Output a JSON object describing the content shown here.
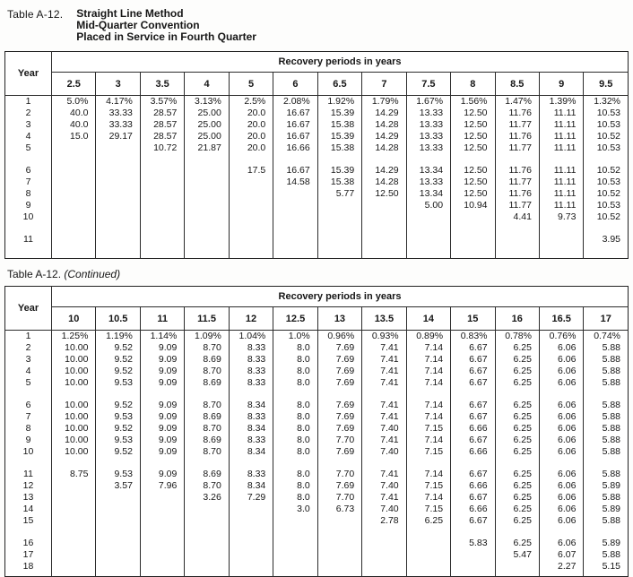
{
  "doc": {
    "table_label": "Table A-12.",
    "title_lines": [
      "Straight Line Method",
      "Mid-Quarter Convention",
      "Placed in Service in Fourth Quarter"
    ],
    "continued_table_label": "Table A-12.",
    "continued_note": "(Continued)"
  },
  "tables": [
    {
      "id": "table-a12-first",
      "year_header": "Year",
      "group_header": "Recovery periods in years",
      "columns": [
        "2.5",
        "3",
        "3.5",
        "4",
        "5",
        "6",
        "6.5",
        "7",
        "7.5",
        "8",
        "8.5",
        "9",
        "9.5"
      ],
      "row_groups": [
        [
          {
            "year": "1",
            "values": [
              "5.0%",
              "4.17%",
              "3.57%",
              "3.13%",
              "2.5%",
              "2.08%",
              "1.92%",
              "1.79%",
              "1.67%",
              "1.56%",
              "1.47%",
              "1.39%",
              "1.32%"
            ]
          },
          {
            "year": "2",
            "values": [
              "40.0",
              "33.33",
              "28.57",
              "25.00",
              "20.0",
              "16.67",
              "15.39",
              "14.29",
              "13.33",
              "12.50",
              "11.76",
              "11.11",
              "10.53"
            ]
          },
          {
            "year": "3",
            "values": [
              "40.0",
              "33.33",
              "28.57",
              "25.00",
              "20.0",
              "16.67",
              "15.38",
              "14.28",
              "13.33",
              "12.50",
              "11.77",
              "11.11",
              "10.53"
            ]
          },
          {
            "year": "4",
            "values": [
              "15.0",
              "29.17",
              "28.57",
              "25.00",
              "20.0",
              "16.67",
              "15.39",
              "14.29",
              "13.33",
              "12.50",
              "11.76",
              "11.11",
              "10.52"
            ]
          },
          {
            "year": "5",
            "values": [
              "",
              "",
              "10.72",
              "21.87",
              "20.0",
              "16.66",
              "15.38",
              "14.28",
              "13.33",
              "12.50",
              "11.77",
              "11.11",
              "10.53"
            ]
          }
        ],
        [
          {
            "year": "6",
            "values": [
              "",
              "",
              "",
              "",
              "17.5",
              "16.67",
              "15.39",
              "14.29",
              "13.34",
              "12.50",
              "11.76",
              "11.11",
              "10.52"
            ]
          },
          {
            "year": "7",
            "values": [
              "",
              "",
              "",
              "",
              "",
              "14.58",
              "15.38",
              "14.28",
              "13.33",
              "12.50",
              "11.77",
              "11.11",
              "10.53"
            ]
          },
          {
            "year": "8",
            "values": [
              "",
              "",
              "",
              "",
              "",
              "",
              "5.77",
              "12.50",
              "13.34",
              "12.50",
              "11.76",
              "11.11",
              "10.52"
            ]
          },
          {
            "year": "9",
            "values": [
              "",
              "",
              "",
              "",
              "",
              "",
              "",
              "",
              "5.00",
              "10.94",
              "11.77",
              "11.11",
              "10.53"
            ]
          },
          {
            "year": "10",
            "values": [
              "",
              "",
              "",
              "",
              "",
              "",
              "",
              "",
              "",
              "",
              "4.41",
              "9.73",
              "10.52"
            ]
          }
        ],
        [
          {
            "year": "11",
            "values": [
              "",
              "",
              "",
              "",
              "",
              "",
              "",
              "",
              "",
              "",
              "",
              "",
              "3.95"
            ]
          }
        ]
      ]
    },
    {
      "id": "table-a12-continued",
      "year_header": "Year",
      "group_header": "Recovery periods in years",
      "columns": [
        "10",
        "10.5",
        "11",
        "11.5",
        "12",
        "12.5",
        "13",
        "13.5",
        "14",
        "15",
        "16",
        "16.5",
        "17"
      ],
      "row_groups": [
        [
          {
            "year": "1",
            "values": [
              "1.25%",
              "1.19%",
              "1.14%",
              "1.09%",
              "1.04%",
              "1.0%",
              "0.96%",
              "0.93%",
              "0.89%",
              "0.83%",
              "0.78%",
              "0.76%",
              "0.74%"
            ]
          },
          {
            "year": "2",
            "values": [
              "10.00",
              "9.52",
              "9.09",
              "8.70",
              "8.33",
              "8.0",
              "7.69",
              "7.41",
              "7.14",
              "6.67",
              "6.25",
              "6.06",
              "5.88"
            ]
          },
          {
            "year": "3",
            "values": [
              "10.00",
              "9.52",
              "9.09",
              "8.69",
              "8.33",
              "8.0",
              "7.69",
              "7.41",
              "7.14",
              "6.67",
              "6.25",
              "6.06",
              "5.88"
            ]
          },
          {
            "year": "4",
            "values": [
              "10.00",
              "9.52",
              "9.09",
              "8.70",
              "8.33",
              "8.0",
              "7.69",
              "7.41",
              "7.14",
              "6.67",
              "6.25",
              "6.06",
              "5.88"
            ]
          },
          {
            "year": "5",
            "values": [
              "10.00",
              "9.53",
              "9.09",
              "8.69",
              "8.33",
              "8.0",
              "7.69",
              "7.41",
              "7.14",
              "6.67",
              "6.25",
              "6.06",
              "5.88"
            ]
          }
        ],
        [
          {
            "year": "6",
            "values": [
              "10.00",
              "9.52",
              "9.09",
              "8.70",
              "8.34",
              "8.0",
              "7.69",
              "7.41",
              "7.14",
              "6.67",
              "6.25",
              "6.06",
              "5.88"
            ]
          },
          {
            "year": "7",
            "values": [
              "10.00",
              "9.53",
              "9.09",
              "8.69",
              "8.33",
              "8.0",
              "7.69",
              "7.41",
              "7.14",
              "6.67",
              "6.25",
              "6.06",
              "5.88"
            ]
          },
          {
            "year": "8",
            "values": [
              "10.00",
              "9.52",
              "9.09",
              "8.70",
              "8.34",
              "8.0",
              "7.69",
              "7.40",
              "7.15",
              "6.66",
              "6.25",
              "6.06",
              "5.88"
            ]
          },
          {
            "year": "9",
            "values": [
              "10.00",
              "9.53",
              "9.09",
              "8.69",
              "8.33",
              "8.0",
              "7.70",
              "7.41",
              "7.14",
              "6.67",
              "6.25",
              "6.06",
              "5.88"
            ]
          },
          {
            "year": "10",
            "values": [
              "10.00",
              "9.52",
              "9.09",
              "8.70",
              "8.34",
              "8.0",
              "7.69",
              "7.40",
              "7.15",
              "6.66",
              "6.25",
              "6.06",
              "5.88"
            ]
          }
        ],
        [
          {
            "year": "11",
            "values": [
              "8.75",
              "9.53",
              "9.09",
              "8.69",
              "8.33",
              "8.0",
              "7.70",
              "7.41",
              "7.14",
              "6.67",
              "6.25",
              "6.06",
              "5.88"
            ]
          },
          {
            "year": "12",
            "values": [
              "",
              "3.57",
              "7.96",
              "8.70",
              "8.34",
              "8.0",
              "7.69",
              "7.40",
              "7.15",
              "6.66",
              "6.25",
              "6.06",
              "5.89"
            ]
          },
          {
            "year": "13",
            "values": [
              "",
              "",
              "",
              "3.26",
              "7.29",
              "8.0",
              "7.70",
              "7.41",
              "7.14",
              "6.67",
              "6.25",
              "6.06",
              "5.88"
            ]
          },
          {
            "year": "14",
            "values": [
              "",
              "",
              "",
              "",
              "",
              "3.0",
              "6.73",
              "7.40",
              "7.15",
              "6.66",
              "6.25",
              "6.06",
              "5.89"
            ]
          },
          {
            "year": "15",
            "values": [
              "",
              "",
              "",
              "",
              "",
              "",
              "",
              "2.78",
              "6.25",
              "6.67",
              "6.25",
              "6.06",
              "5.88"
            ]
          }
        ],
        [
          {
            "year": "16",
            "values": [
              "",
              "",
              "",
              "",
              "",
              "",
              "",
              "",
              "",
              "5.83",
              "6.25",
              "6.06",
              "5.89"
            ]
          },
          {
            "year": "17",
            "values": [
              "",
              "",
              "",
              "",
              "",
              "",
              "",
              "",
              "",
              "",
              "5.47",
              "6.07",
              "5.88"
            ]
          },
          {
            "year": "18",
            "values": [
              "",
              "",
              "",
              "",
              "",
              "",
              "",
              "",
              "",
              "",
              "",
              "2.27",
              "5.15"
            ]
          }
        ]
      ]
    }
  ]
}
